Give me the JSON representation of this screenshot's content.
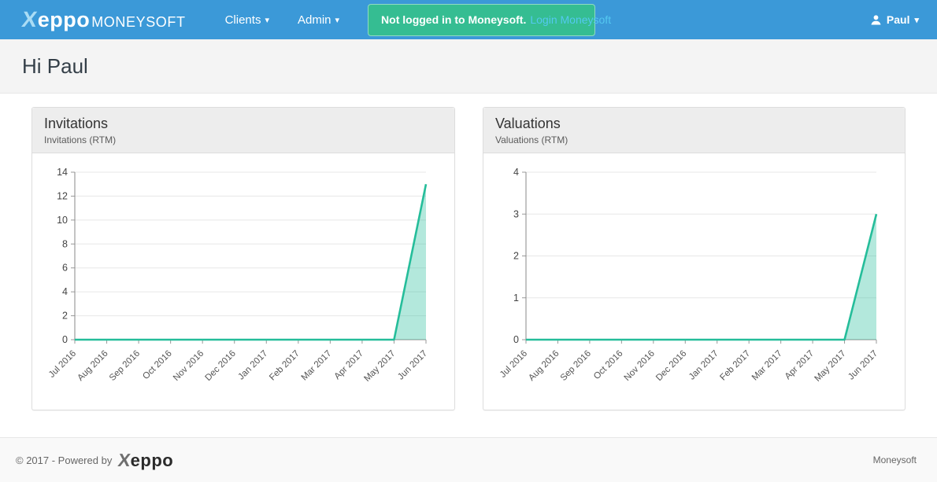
{
  "brand": {
    "x": "X",
    "rest": "eppo",
    "suffix": "MONEYSOFT"
  },
  "nav": {
    "items": [
      {
        "label": "Clients"
      },
      {
        "label": "Admin"
      }
    ]
  },
  "alert": {
    "text": "Not logged in to Moneysoft.",
    "link_label": "Login Moneysoft"
  },
  "user": {
    "name": "Paul"
  },
  "icons": {
    "caret_down": "▾"
  },
  "page": {
    "title": "Hi Paul"
  },
  "theme": {
    "navbar_blue": "#3b99d8",
    "alert_green": "#35bd92",
    "alert_link_cyan": "#54c8f0",
    "chart_line_teal": "#25bd9a"
  },
  "chart_data": [
    {
      "type": "area",
      "title": "Invitations",
      "subtitle": "Invitations (RTM)",
      "categories": [
        "Jul 2016",
        "Aug 2016",
        "Sep 2016",
        "Oct 2016",
        "Nov 2016",
        "Dec 2016",
        "Jan 2017",
        "Feb 2017",
        "Mar 2017",
        "Apr 2017",
        "May 2017",
        "Jun 2017"
      ],
      "values": [
        0,
        0,
        0,
        0,
        0,
        0,
        0,
        0,
        0,
        0,
        0,
        13
      ],
      "ylim": [
        0,
        14
      ],
      "yticks": [
        0,
        2,
        4,
        6,
        8,
        10,
        12,
        14
      ],
      "grid": true,
      "legend": "none",
      "line_color": "#25bd9a",
      "fill_color": "rgba(37,189,154,0.35)"
    },
    {
      "type": "area",
      "title": "Valuations",
      "subtitle": "Valuations (RTM)",
      "categories": [
        "Jul 2016",
        "Aug 2016",
        "Sep 2016",
        "Oct 2016",
        "Nov 2016",
        "Dec 2016",
        "Jan 2017",
        "Feb 2017",
        "Mar 2017",
        "Apr 2017",
        "May 2017",
        "Jun 2017"
      ],
      "values": [
        0,
        0,
        0,
        0,
        0,
        0,
        0,
        0,
        0,
        0,
        0,
        3
      ],
      "ylim": [
        0,
        4
      ],
      "yticks": [
        0,
        1,
        2,
        3,
        4
      ],
      "grid": true,
      "legend": "none",
      "line_color": "#25bd9a",
      "fill_color": "rgba(37,189,154,0.35)"
    }
  ],
  "footer": {
    "copyright": "© 2017 - Powered by",
    "brand_x": "X",
    "brand_rest": "eppo",
    "right_label": "Moneysoft"
  }
}
